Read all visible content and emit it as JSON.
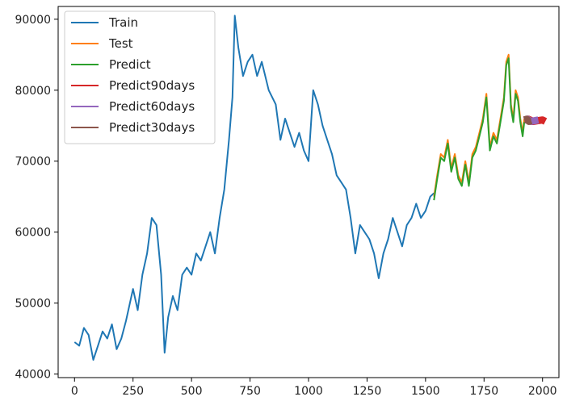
{
  "chart_data": {
    "type": "line",
    "title": "",
    "xlabel": "",
    "ylabel": "",
    "xlim": [
      -70,
      2070
    ],
    "ylim": [
      39500,
      91800
    ],
    "x_ticks": [
      0,
      250,
      500,
      750,
      1000,
      1250,
      1500,
      1750,
      2000
    ],
    "y_ticks": [
      40000,
      50000,
      60000,
      70000,
      80000,
      90000
    ],
    "x_tick_labels": [
      "0",
      "250",
      "500",
      "750",
      "1000",
      "1250",
      "1500",
      "1750",
      "2000"
    ],
    "y_tick_labels": [
      "40000",
      "50000",
      "60000",
      "70000",
      "80000",
      "90000"
    ],
    "grid": false,
    "legend_position": "top-left",
    "series": [
      {
        "name": "Train",
        "color": "#1f77b4",
        "x": [
          0,
          20,
          40,
          60,
          80,
          100,
          120,
          140,
          160,
          180,
          200,
          220,
          250,
          270,
          290,
          310,
          330,
          350,
          370,
          385,
          400,
          420,
          440,
          460,
          480,
          500,
          520,
          540,
          560,
          580,
          600,
          620,
          640,
          660,
          675,
          685,
          700,
          720,
          740,
          760,
          780,
          800,
          830,
          860,
          880,
          900,
          920,
          940,
          960,
          980,
          1000,
          1020,
          1040,
          1060,
          1080,
          1100,
          1120,
          1140,
          1160,
          1180,
          1200,
          1220,
          1240,
          1260,
          1280,
          1300,
          1320,
          1340,
          1360,
          1380,
          1400,
          1420,
          1440,
          1460,
          1480,
          1500,
          1520,
          1536
        ],
        "values": [
          44500,
          44000,
          46500,
          45500,
          42000,
          44000,
          46000,
          45000,
          47000,
          43500,
          45000,
          47500,
          52000,
          49000,
          54000,
          57000,
          62000,
          61000,
          54000,
          43000,
          48000,
          51000,
          49000,
          54000,
          55000,
          54000,
          57000,
          56000,
          58000,
          60000,
          57000,
          62000,
          66000,
          73000,
          79000,
          90500,
          86000,
          82000,
          84000,
          85000,
          82000,
          84000,
          80000,
          78000,
          73000,
          76000,
          74000,
          72000,
          74000,
          71500,
          70000,
          80000,
          78000,
          75000,
          73000,
          71000,
          68000,
          67000,
          66000,
          62000,
          57000,
          61000,
          60000,
          59000,
          57000,
          53500,
          57000,
          59000,
          62000,
          60000,
          58000,
          61000,
          62000,
          64000,
          62000,
          63000,
          65000,
          65500
        ]
      },
      {
        "name": "Test",
        "color": "#ff7f0e",
        "x": [
          1536,
          1550,
          1565,
          1580,
          1595,
          1610,
          1625,
          1640,
          1655,
          1670,
          1685,
          1700,
          1715,
          1730,
          1745,
          1760,
          1775,
          1790,
          1805,
          1820,
          1835,
          1845,
          1855,
          1865,
          1875,
          1885,
          1895,
          1905,
          1915,
          1922
        ],
        "values": [
          65000,
          68000,
          71000,
          70500,
          73000,
          69000,
          71000,
          68000,
          67000,
          70000,
          67000,
          71000,
          72000,
          74000,
          76000,
          79500,
          72000,
          74000,
          73000,
          76000,
          79000,
          84000,
          85000,
          78000,
          76000,
          80000,
          79000,
          76000,
          74000,
          76000
        ]
      },
      {
        "name": "Predict",
        "color": "#2ca02c",
        "x": [
          1536,
          1550,
          1565,
          1580,
          1595,
          1610,
          1625,
          1640,
          1655,
          1670,
          1685,
          1700,
          1715,
          1730,
          1745,
          1760,
          1775,
          1790,
          1805,
          1820,
          1835,
          1845,
          1855,
          1865,
          1875,
          1885,
          1895,
          1905,
          1915,
          1922
        ],
        "values": [
          64500,
          67500,
          70500,
          70000,
          72500,
          68500,
          70500,
          67500,
          66500,
          69500,
          66500,
          70500,
          71500,
          73500,
          75500,
          79000,
          71500,
          73500,
          72500,
          75500,
          78500,
          83500,
          84500,
          77500,
          75500,
          79500,
          78500,
          75500,
          73500,
          75500
        ]
      },
      {
        "name": "Predict90days",
        "color": "#d62728",
        "x": [
          1922,
          1940,
          1960,
          1980,
          2000,
          2012
        ],
        "values": [
          75800,
          75900,
          75600,
          75700,
          75800,
          75600
        ]
      },
      {
        "name": "Predict60days",
        "color": "#9467bd",
        "x": [
          1922,
          1935,
          1950,
          1965,
          1982
        ],
        "values": [
          75800,
          75900,
          75600,
          75700,
          75800
        ]
      },
      {
        "name": "Predict30days",
        "color": "#8c564b",
        "x": [
          1922,
          1932,
          1942,
          1952
        ],
        "values": [
          75800,
          75900,
          75600,
          75700
        ]
      }
    ]
  }
}
